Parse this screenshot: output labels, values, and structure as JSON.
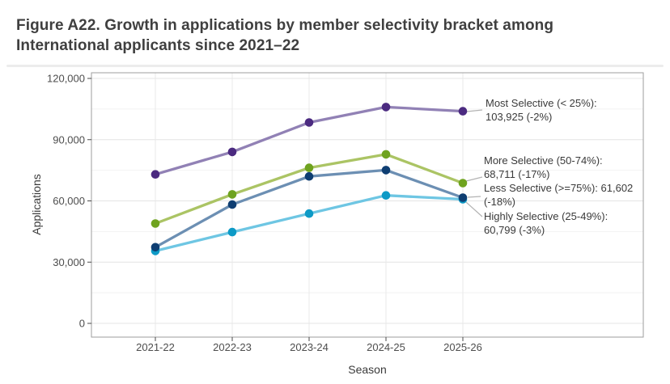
{
  "title": {
    "line1": "Figure A22. Growth in applications by member selectivity bracket among",
    "line2": "International applicants since 2021–22"
  },
  "chart_data": {
    "type": "line",
    "title": "Figure A22. Growth in applications by member selectivity bracket among International applicants since 2021–22",
    "xlabel": "Season",
    "ylabel": "Applications",
    "categories": [
      "2021-22",
      "2022-23",
      "2023-24",
      "2024-25",
      "2025-26"
    ],
    "ylim": [
      0,
      120000
    ],
    "grid": true,
    "legend_position": "right-inline-annotations",
    "y_ticks": [
      {
        "value": 0,
        "label": "0"
      },
      {
        "value": 30000,
        "label": "30,000"
      },
      {
        "value": 60000,
        "label": "60,000"
      },
      {
        "value": 90000,
        "label": "90,000"
      },
      {
        "value": 120000,
        "label": "120,000"
      }
    ],
    "y_minor_ticks": [
      15000,
      45000,
      75000,
      105000
    ],
    "series": [
      {
        "key": "most-selective",
        "name": "Most Selective (< 25%)",
        "line_color": "#9181b5",
        "point_color": "#4b2a80",
        "values": [
          73000,
          84000,
          98400,
          106000,
          103925
        ],
        "annotation_lines": [
          "Most Selective (< 25%):",
          "103,925 (-2%)"
        ]
      },
      {
        "key": "more-selective",
        "name": "More Selective (50-74%)",
        "line_color": "#abc464",
        "point_color": "#6fa31f",
        "values": [
          48900,
          63200,
          76200,
          82800,
          68711
        ],
        "annotation_lines": [
          "More Selective (50-74%):",
          "68,711 (-17%)"
        ]
      },
      {
        "key": "less-selective",
        "name": "Less Selective (>=75%)",
        "line_color": "#6c8fb3",
        "point_color": "#0e3e72",
        "values": [
          37300,
          58200,
          72000,
          75100,
          61602
        ],
        "annotation_lines": [
          "Less Selective (>=75%): 61,602",
          "(-18%)"
        ]
      },
      {
        "key": "highly-selective",
        "name": "Highly Selective (25-49%)",
        "line_color": "#6ec6e3",
        "point_color": "#0d9ac6",
        "values": [
          35500,
          44700,
          53800,
          62700,
          60799
        ],
        "annotation_lines": [
          "Highly Selective (25-49%):",
          "60,799 (-3%)"
        ]
      }
    ]
  }
}
